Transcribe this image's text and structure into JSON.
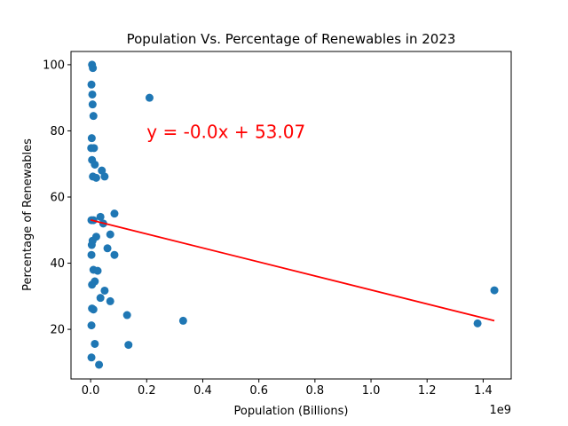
{
  "chart_data": {
    "type": "scatter",
    "title": "Population Vs. Percentage of Renewables in 2023",
    "xlabel": "Population (Billions)",
    "ylabel": "Percentage of Renewables",
    "x_offset_label": "1e9",
    "xlim": [
      -0.07,
      1.5
    ],
    "ylim": [
      5,
      104
    ],
    "x_ticks": [
      0.0,
      0.2,
      0.4,
      0.6,
      0.8,
      1.0,
      1.2,
      1.4
    ],
    "x_tick_labels": [
      "0.0",
      "0.2",
      "0.4",
      "0.6",
      "0.8",
      "1.0",
      "1.2",
      "1.4"
    ],
    "y_ticks": [
      20,
      40,
      60,
      80,
      100
    ],
    "y_tick_labels": [
      "20",
      "40",
      "60",
      "80",
      "100"
    ],
    "grid": false,
    "point_color": "#1f77b4",
    "line_color": "#ff0000",
    "annotation": {
      "text": "y = -0.0x + 53.07",
      "color": "#ff0000",
      "x": 0.2,
      "y": 80
    },
    "regression": {
      "x": [
        0.0,
        1.44
      ],
      "y": [
        53.07,
        22.6
      ]
    },
    "points": [
      [
        0.005,
        100.0
      ],
      [
        0.008,
        99.0
      ],
      [
        0.003,
        94.0
      ],
      [
        0.006,
        91.0
      ],
      [
        0.007,
        88.0
      ],
      [
        0.01,
        84.5
      ],
      [
        0.004,
        77.8
      ],
      [
        0.002,
        74.8
      ],
      [
        0.012,
        74.8
      ],
      [
        0.005,
        71.2
      ],
      [
        0.015,
        69.8
      ],
      [
        0.008,
        66.2
      ],
      [
        0.02,
        65.8
      ],
      [
        0.04,
        68.0
      ],
      [
        0.05,
        66.2
      ],
      [
        0.21,
        90.0
      ],
      [
        0.003,
        53.0
      ],
      [
        0.01,
        53.0
      ],
      [
        0.035,
        54.0
      ],
      [
        0.085,
        55.0
      ],
      [
        0.045,
        52.0
      ],
      [
        0.02,
        48.0
      ],
      [
        0.07,
        48.7
      ],
      [
        0.007,
        46.8
      ],
      [
        0.004,
        45.5
      ],
      [
        0.06,
        44.5
      ],
      [
        0.085,
        42.5
      ],
      [
        0.003,
        42.5
      ],
      [
        0.01,
        38.0
      ],
      [
        0.025,
        37.7
      ],
      [
        0.015,
        34.5
      ],
      [
        0.005,
        33.5
      ],
      [
        0.05,
        31.7
      ],
      [
        0.035,
        29.5
      ],
      [
        0.07,
        28.5
      ],
      [
        0.005,
        26.3
      ],
      [
        0.01,
        26.0
      ],
      [
        0.13,
        24.3
      ],
      [
        0.33,
        22.6
      ],
      [
        0.003,
        21.2
      ],
      [
        0.015,
        15.6
      ],
      [
        0.135,
        15.3
      ],
      [
        0.003,
        11.5
      ],
      [
        0.03,
        9.3
      ],
      [
        1.38,
        21.8
      ],
      [
        1.44,
        31.8
      ]
    ]
  }
}
